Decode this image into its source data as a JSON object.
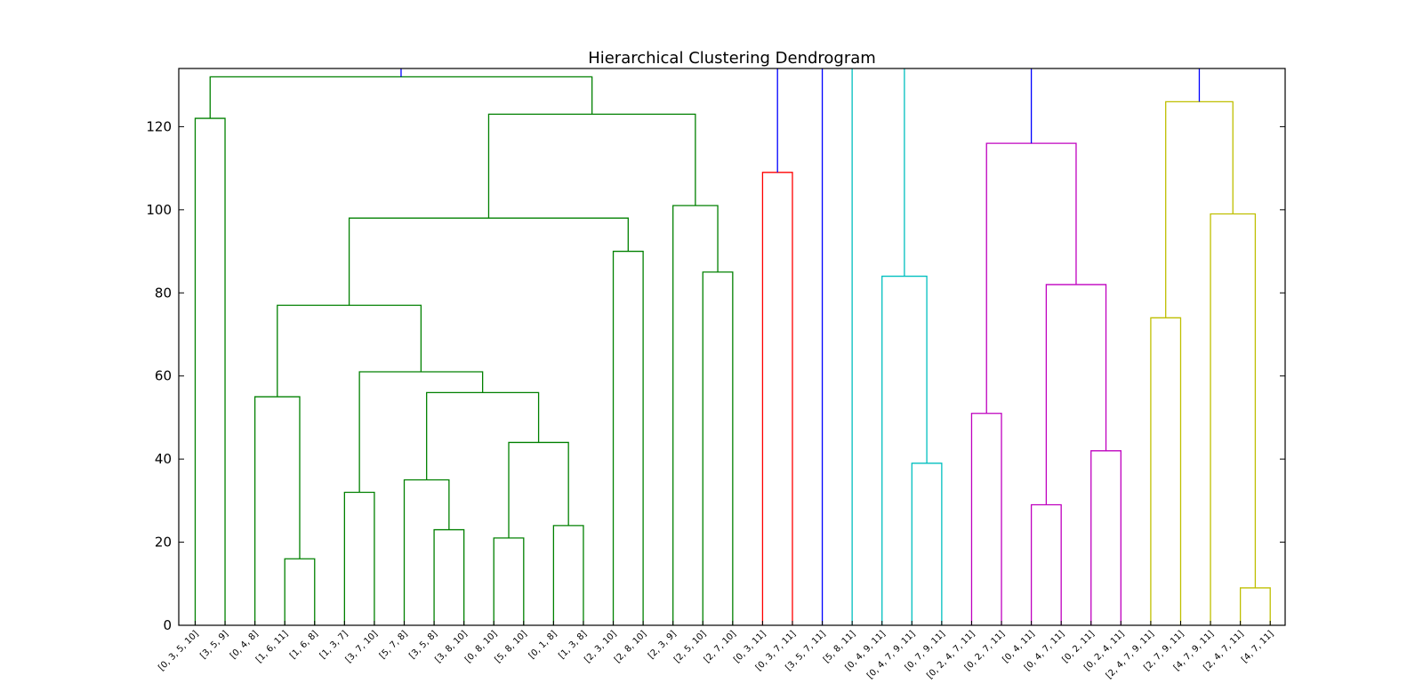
{
  "chart_data": {
    "type": "dendrogram",
    "title": "Hierarchical Clustering Dendrogram",
    "xlabel": "",
    "ylabel": "",
    "ylim": [
      0,
      134
    ],
    "yticks": [
      0,
      20,
      40,
      60,
      80,
      100,
      120
    ],
    "grid": false,
    "leaves": [
      "[0, 3, 5, 10]",
      "[3, 5, 9]",
      "[0, 4, 8]",
      "[1, 6, 11]",
      "[1, 6, 8]",
      "[1, 3, 7]",
      "[3, 7, 10]",
      "[5, 7, 8]",
      "[3, 5, 8]",
      "[3, 8, 10]",
      "[0, 8, 10]",
      "[5, 8, 10]",
      "[0, 1, 8]",
      "[1, 3, 8]",
      "[2, 3, 10]",
      "[2, 8, 10]",
      "[2, 3, 9]",
      "[2, 5, 10]",
      "[2, 7, 10]",
      "[0, 3, 11]",
      "[0, 3, 7, 11]",
      "[3, 5, 7, 11]",
      "[5, 8, 11]",
      "[0, 4, 9, 11]",
      "[0, 4, 7, 9, 11]",
      "[0, 7, 9, 11]",
      "[0, 2, 4, 7, 11]",
      "[0, 2, 7, 11]",
      "[0, 4, 11]",
      "[0, 4, 7, 11]",
      "[0, 2, 11]",
      "[0, 2, 4, 11]",
      "[2, 4, 7, 9, 11]",
      "[2, 7, 9, 11]",
      "[4, 7, 9, 11]",
      "[2, 4, 7, 11]",
      "[4, 7, 11]"
    ],
    "links": [
      {
        "x": [
          0,
          0,
          1,
          1
        ],
        "y": [
          0,
          122,
          122,
          0
        ],
        "color": "#008000"
      },
      {
        "x": [
          3,
          3,
          4,
          4
        ],
        "y": [
          0,
          16,
          16,
          0
        ],
        "color": "#008000"
      },
      {
        "x": [
          2,
          2,
          3.5,
          3.5
        ],
        "y": [
          0,
          55,
          55,
          16
        ],
        "color": "#008000"
      },
      {
        "x": [
          5,
          5,
          6,
          6
        ],
        "y": [
          0,
          32,
          32,
          0
        ],
        "color": "#008000"
      },
      {
        "x": [
          8,
          8,
          9,
          9
        ],
        "y": [
          0,
          23,
          23,
          0
        ],
        "color": "#008000"
      },
      {
        "x": [
          7,
          7,
          8.5,
          8.5
        ],
        "y": [
          0,
          35,
          35,
          23
        ],
        "color": "#008000"
      },
      {
        "x": [
          10,
          10,
          11,
          11
        ],
        "y": [
          0,
          21,
          21,
          0
        ],
        "color": "#008000"
      },
      {
        "x": [
          12,
          12,
          13,
          13
        ],
        "y": [
          0,
          24,
          24,
          0
        ],
        "color": "#008000"
      },
      {
        "x": [
          10.5,
          10.5,
          12.5,
          12.5
        ],
        "y": [
          21,
          44,
          44,
          24
        ],
        "color": "#008000"
      },
      {
        "x": [
          7.75,
          7.75,
          11.5,
          11.5
        ],
        "y": [
          35,
          56,
          56,
          44
        ],
        "color": "#008000"
      },
      {
        "x": [
          5.5,
          5.5,
          9.625,
          9.625
        ],
        "y": [
          32,
          61,
          61,
          56
        ],
        "color": "#008000"
      },
      {
        "x": [
          2.75,
          2.75,
          7.5625,
          7.5625
        ],
        "y": [
          55,
          77,
          77,
          61
        ],
        "color": "#008000"
      },
      {
        "x": [
          14,
          14,
          15,
          15
        ],
        "y": [
          0,
          90,
          90,
          0
        ],
        "color": "#008000"
      },
      {
        "x": [
          5.15625,
          5.15625,
          14.5,
          14.5
        ],
        "y": [
          77,
          98,
          98,
          90
        ],
        "color": "#008000"
      },
      {
        "x": [
          17,
          17,
          18,
          18
        ],
        "y": [
          0,
          85,
          85,
          0
        ],
        "color": "#008000"
      },
      {
        "x": [
          16,
          16,
          17.5,
          17.5
        ],
        "y": [
          0,
          101,
          101,
          85
        ],
        "color": "#008000"
      },
      {
        "x": [
          9.828125,
          9.828125,
          16.75,
          16.75
        ],
        "y": [
          98,
          123,
          123,
          101
        ],
        "color": "#008000"
      },
      {
        "x": [
          0.5,
          0.5,
          13.2890625,
          13.2890625
        ],
        "y": [
          122,
          132,
          132,
          123
        ],
        "color": "#008000"
      },
      {
        "x": [
          6.89453125,
          6.89453125
        ],
        "y": [
          132,
          140
        ],
        "color": "#0000ff"
      },
      {
        "x": [
          19,
          19,
          20,
          20
        ],
        "y": [
          0,
          109,
          109,
          0
        ],
        "color": "#ff0000"
      },
      {
        "x": [
          19.5,
          19.5
        ],
        "y": [
          109,
          140
        ],
        "color": "#0000ff"
      },
      {
        "x": [
          21,
          21
        ],
        "y": [
          0,
          140
        ],
        "color": "#0000ff"
      },
      {
        "x": [
          22,
          22
        ],
        "y": [
          0,
          140
        ],
        "color": "#00bfbf"
      },
      {
        "x": [
          24,
          24,
          25,
          25
        ],
        "y": [
          0,
          39,
          39,
          0
        ],
        "color": "#00bfbf"
      },
      {
        "x": [
          23,
          23,
          24.5,
          24.5
        ],
        "y": [
          0,
          84,
          84,
          39
        ],
        "color": "#00bfbf"
      },
      {
        "x": [
          23.75,
          23.75
        ],
        "y": [
          84,
          140
        ],
        "color": "#00bfbf"
      },
      {
        "x": [
          26,
          26,
          27,
          27
        ],
        "y": [
          0,
          51,
          51,
          0
        ],
        "color": "#bf00bf"
      },
      {
        "x": [
          28,
          28,
          29,
          29
        ],
        "y": [
          0,
          29,
          29,
          0
        ],
        "color": "#bf00bf"
      },
      {
        "x": [
          30,
          30,
          31,
          31
        ],
        "y": [
          0,
          42,
          42,
          0
        ],
        "color": "#bf00bf"
      },
      {
        "x": [
          28.5,
          28.5,
          30.5,
          30.5
        ],
        "y": [
          29,
          82,
          82,
          42
        ],
        "color": "#bf00bf"
      },
      {
        "x": [
          26.5,
          26.5,
          29.5,
          29.5
        ],
        "y": [
          51,
          116,
          116,
          82
        ],
        "color": "#bf00bf"
      },
      {
        "x": [
          28,
          28
        ],
        "y": [
          116,
          140
        ],
        "color": "#0000ff"
      },
      {
        "x": [
          32,
          32,
          33,
          33
        ],
        "y": [
          0,
          74,
          74,
          0
        ],
        "color": "#bfbf00"
      },
      {
        "x": [
          35,
          35,
          36,
          36
        ],
        "y": [
          0,
          9,
          9,
          0
        ],
        "color": "#bfbf00"
      },
      {
        "x": [
          34,
          34,
          35.5,
          35.5
        ],
        "y": [
          0,
          99,
          99,
          9
        ],
        "color": "#bfbf00"
      },
      {
        "x": [
          32.5,
          32.5,
          34.75,
          34.75
        ],
        "y": [
          74,
          126,
          126,
          99
        ],
        "color": "#bfbf00"
      },
      {
        "x": [
          33.625,
          33.625
        ],
        "y": [
          126,
          140
        ],
        "color": "#0000ff"
      }
    ]
  }
}
